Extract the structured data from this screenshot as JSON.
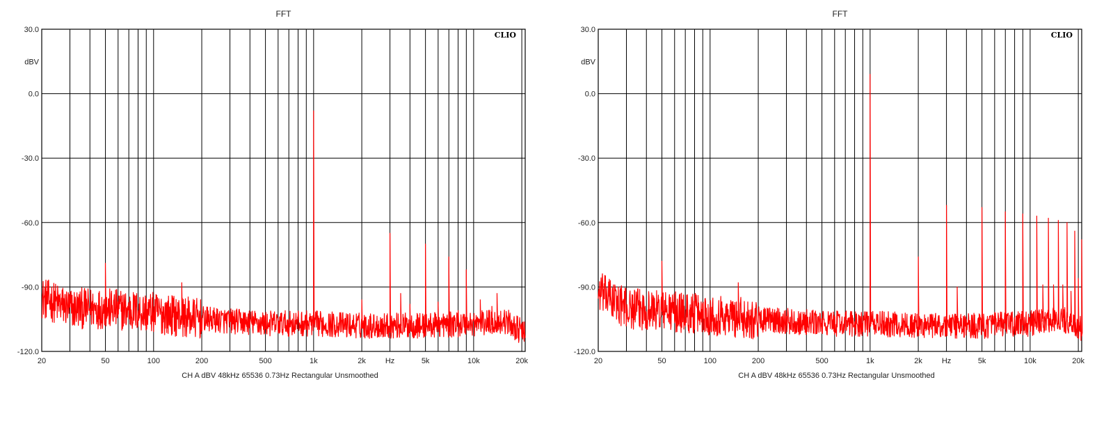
{
  "chart_data": [
    {
      "type": "line",
      "title": "FFT",
      "brand": "CLIO",
      "ylabel": "dBV",
      "footer": "CH A   dBV   48kHz   65536   0.73Hz   Rectangular   Unsmoothed",
      "x_scale": "log",
      "xlim": [
        20,
        21000
      ],
      "ylim": [
        -120,
        30
      ],
      "grid": true,
      "x_ticks": [
        {
          "value": 20,
          "label": "20"
        },
        {
          "value": 50,
          "label": "50"
        },
        {
          "value": 100,
          "label": "100"
        },
        {
          "value": 200,
          "label": "200"
        },
        {
          "value": 500,
          "label": "500"
        },
        {
          "value": 1000,
          "label": "1k"
        },
        {
          "value": 2000,
          "label": "2k"
        },
        {
          "value": 3000,
          "label": "Hz"
        },
        {
          "value": 5000,
          "label": "5k"
        },
        {
          "value": 10000,
          "label": "10k"
        },
        {
          "value": 20000,
          "label": "20k"
        }
      ],
      "y_ticks": [
        {
          "value": 30,
          "label": "30.0"
        },
        {
          "value": 0,
          "label": "0.0"
        },
        {
          "value": -30,
          "label": "-30.0"
        },
        {
          "value": -60,
          "label": "-60.0"
        },
        {
          "value": -90,
          "label": "-90.0"
        },
        {
          "value": -120,
          "label": "-120.0"
        }
      ],
      "series": [
        {
          "color": "#ff0000",
          "noise_floor": [
            [
              20,
              -95
            ],
            [
              30,
              -100
            ],
            [
              50,
              -100
            ],
            [
              100,
              -102
            ],
            [
              200,
              -105
            ],
            [
              500,
              -107
            ],
            [
              1000,
              -107
            ],
            [
              2000,
              -108
            ],
            [
              5000,
              -108
            ],
            [
              10000,
              -107
            ],
            [
              16000,
              -106
            ],
            [
              21000,
              -112
            ]
          ],
          "peaks": [
            {
              "x": 50,
              "y": -79
            },
            {
              "x": 150,
              "y": -88
            },
            {
              "x": 1000,
              "y": -8
            },
            {
              "x": 2000,
              "y": -96
            },
            {
              "x": 3000,
              "y": -65
            },
            {
              "x": 3500,
              "y": -93
            },
            {
              "x": 4000,
              "y": -98
            },
            {
              "x": 5000,
              "y": -70
            },
            {
              "x": 6000,
              "y": -97
            },
            {
              "x": 7000,
              "y": -76
            },
            {
              "x": 8000,
              "y": -101
            },
            {
              "x": 9000,
              "y": -82
            },
            {
              "x": 11000,
              "y": -96
            },
            {
              "x": 13000,
              "y": -99
            },
            {
              "x": 14000,
              "y": -93
            }
          ]
        }
      ]
    },
    {
      "type": "line",
      "title": "FFT",
      "brand": "CLIO",
      "ylabel": "dBV",
      "footer": "CH A   dBV   48kHz   65536   0.73Hz   Rectangular   Unsmoothed",
      "x_scale": "log",
      "xlim": [
        20,
        21000
      ],
      "ylim": [
        -120,
        30
      ],
      "grid": true,
      "x_ticks": [
        {
          "value": 20,
          "label": "20"
        },
        {
          "value": 50,
          "label": "50"
        },
        {
          "value": 100,
          "label": "100"
        },
        {
          "value": 200,
          "label": "200"
        },
        {
          "value": 500,
          "label": "500"
        },
        {
          "value": 1000,
          "label": "1k"
        },
        {
          "value": 2000,
          "label": "2k"
        },
        {
          "value": 3000,
          "label": "Hz"
        },
        {
          "value": 5000,
          "label": "5k"
        },
        {
          "value": 10000,
          "label": "10k"
        },
        {
          "value": 20000,
          "label": "20k"
        }
      ],
      "y_ticks": [
        {
          "value": 30,
          "label": "30.0"
        },
        {
          "value": 0,
          "label": "0.0"
        },
        {
          "value": -30,
          "label": "-30.0"
        },
        {
          "value": -60,
          "label": "-60.0"
        },
        {
          "value": -90,
          "label": "-90.0"
        },
        {
          "value": -120,
          "label": "-120.0"
        }
      ],
      "series": [
        {
          "color": "#ff0000",
          "noise_floor": [
            [
              20,
              -92
            ],
            [
              30,
              -100
            ],
            [
              50,
              -101
            ],
            [
              100,
              -103
            ],
            [
              200,
              -105
            ],
            [
              500,
              -107
            ],
            [
              1000,
              -107
            ],
            [
              2000,
              -108
            ],
            [
              5000,
              -108
            ],
            [
              10000,
              -107
            ],
            [
              16000,
              -105
            ],
            [
              21000,
              -110
            ]
          ],
          "peaks": [
            {
              "x": 50,
              "y": -78
            },
            {
              "x": 150,
              "y": -88
            },
            {
              "x": 1000,
              "y": 9
            },
            {
              "x": 2000,
              "y": -76
            },
            {
              "x": 3000,
              "y": -52
            },
            {
              "x": 3500,
              "y": -90
            },
            {
              "x": 5000,
              "y": -53
            },
            {
              "x": 7000,
              "y": -55
            },
            {
              "x": 9000,
              "y": -56
            },
            {
              "x": 11000,
              "y": -57
            },
            {
              "x": 12000,
              "y": -89
            },
            {
              "x": 13000,
              "y": -58
            },
            {
              "x": 14000,
              "y": -89
            },
            {
              "x": 15000,
              "y": -59
            },
            {
              "x": 16000,
              "y": -89
            },
            {
              "x": 17000,
              "y": -60
            },
            {
              "x": 18000,
              "y": -92
            },
            {
              "x": 19000,
              "y": -64
            },
            {
              "x": 20000,
              "y": -86
            },
            {
              "x": 21000,
              "y": -68
            }
          ]
        }
      ]
    }
  ]
}
